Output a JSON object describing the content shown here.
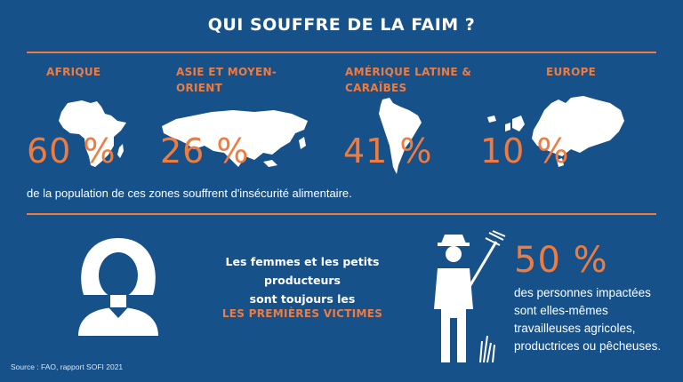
{
  "title": "QUI SOUFFRE DE LA FAIM ?",
  "regions": [
    {
      "name_line1": "AFRIQUE",
      "name_line2": "",
      "percent": "60 %",
      "icon": "africa-map-icon"
    },
    {
      "name_line1": "ASIE ET MOYEN-",
      "name_line2": "ORIENT",
      "percent": "26 %",
      "icon": "asia-map-icon"
    },
    {
      "name_line1": "AMÉRIQUE LATINE &",
      "name_line2": "CARAÏBES",
      "percent": "41 %",
      "icon": "latin-america-map-icon"
    },
    {
      "name_line1": "EUROPE",
      "name_line2": "",
      "percent": "10 %",
      "icon": "europe-map-icon"
    }
  ],
  "caption": "de la population de ces zones souffrent d'insécurité alimentaire.",
  "women_text_line1": "Les femmes et les petits producteurs",
  "women_text_line2": "sont toujours les",
  "women_highlight": "LES PREMIÈRES VICTIMES",
  "stat_percent": "50 %",
  "stat_lines": [
    "des personnes impactées",
    "sont elles-mêmes",
    "travailleuses agricoles,",
    "productrices ou pêcheuses."
  ],
  "source": "Source : FAO, rapport SOFI 2021",
  "colors": {
    "background": "#17518a",
    "accent": "#f07b3f",
    "text": "#ffffff"
  }
}
